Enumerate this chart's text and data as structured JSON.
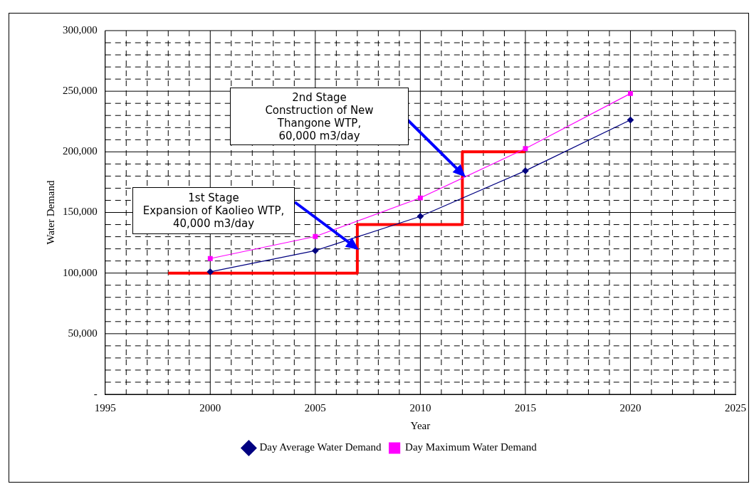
{
  "chart_data": {
    "type": "line",
    "xlabel": "Year",
    "ylabel": "Water Demand",
    "xlim": [
      1995,
      2025
    ],
    "xticks": [
      1995,
      {
        "value": 1996,
        "label": null
      },
      {
        "value": 1997,
        "label": null
      },
      {
        "value": 1998,
        "label": null
      },
      {
        "value": 1999,
        "label": null
      },
      2000,
      {
        "value": 2001,
        "label": null
      },
      {
        "value": 2002,
        "label": null
      },
      {
        "value": 2003,
        "label": null
      },
      {
        "value": 2004,
        "label": null
      },
      2005,
      {
        "value": 2006,
        "label": null
      },
      {
        "value": 2007,
        "label": null
      },
      {
        "value": 2008,
        "label": null
      },
      {
        "value": 2009,
        "label": null
      },
      2010,
      {
        "value": 2011,
        "label": null
      },
      {
        "value": 2012,
        "label": null
      },
      {
        "value": 2013,
        "label": null
      },
      {
        "value": 2014,
        "label": null
      },
      2015,
      {
        "value": 2016,
        "label": null
      },
      {
        "value": 2017,
        "label": null
      },
      {
        "value": 2018,
        "label": null
      },
      {
        "value": 2019,
        "label": null
      },
      2020,
      {
        "value": 2021,
        "label": null
      },
      {
        "value": 2022,
        "label": null
      },
      {
        "value": 2023,
        "label": null
      },
      {
        "value": 2024,
        "label": null
      },
      2025
    ],
    "ylim": [
      0,
      300000
    ],
    "yticks": [
      {
        "value": 0,
        "label": "-"
      },
      {
        "value": 10000,
        "label": null
      },
      {
        "value": 20000,
        "label": null
      },
      {
        "value": 30000,
        "label": null
      },
      {
        "value": 40000,
        "label": null
      },
      {
        "value": 50000,
        "label": "50,000"
      },
      {
        "value": 60000,
        "label": null
      },
      {
        "value": 70000,
        "label": null
      },
      {
        "value": 80000,
        "label": null
      },
      {
        "value": 90000,
        "label": null
      },
      {
        "value": 100000,
        "label": "100,000"
      },
      {
        "value": 110000,
        "label": null
      },
      {
        "value": 120000,
        "label": null
      },
      {
        "value": 130000,
        "label": null
      },
      {
        "value": 140000,
        "label": null
      },
      {
        "value": 150000,
        "label": "150,000"
      },
      {
        "value": 160000,
        "label": null
      },
      {
        "value": 170000,
        "label": null
      },
      {
        "value": 180000,
        "label": null
      },
      {
        "value": 190000,
        "label": null
      },
      {
        "value": 200000,
        "label": "200,000"
      },
      {
        "value": 210000,
        "label": null
      },
      {
        "value": 220000,
        "label": null
      },
      {
        "value": 230000,
        "label": null
      },
      {
        "value": 240000,
        "label": null
      },
      {
        "value": 250000,
        "label": "250,000"
      },
      {
        "value": 260000,
        "label": null
      },
      {
        "value": 270000,
        "label": null
      },
      {
        "value": 280000,
        "label": null
      },
      {
        "value": 290000,
        "label": null
      },
      {
        "value": 300000,
        "label": "300,000"
      }
    ],
    "grid": true,
    "legend": "bottom",
    "line_style": "solid",
    "x": [
      2000,
      2005,
      2010,
      2015,
      2020
    ],
    "series": [
      {
        "name": "Day Average Water Demand",
        "color": "#000080",
        "marker": "diamond",
        "values": [
          101000,
          118500,
          146800,
          184400,
          226300
        ]
      },
      {
        "name": "Day Maximum Water Demand",
        "color": "#ff00ff",
        "marker": "square",
        "values": [
          112000,
          130200,
          162000,
          202700,
          248100
        ]
      },
      {
        "type": "step",
        "color": "#ff0000",
        "marker": "none",
        "x": [
          1998,
          2007,
          2012,
          2015
        ],
        "values": [
          100000,
          140000,
          200000,
          200000
        ]
      }
    ],
    "annotations": [
      "1st Stage\nExpansion of Kaolieo WTP,\n40,000 m3/day",
      "2nd Stage\nConstruction of New\nThangone WTP,\n60,000 m3/day"
    ]
  }
}
